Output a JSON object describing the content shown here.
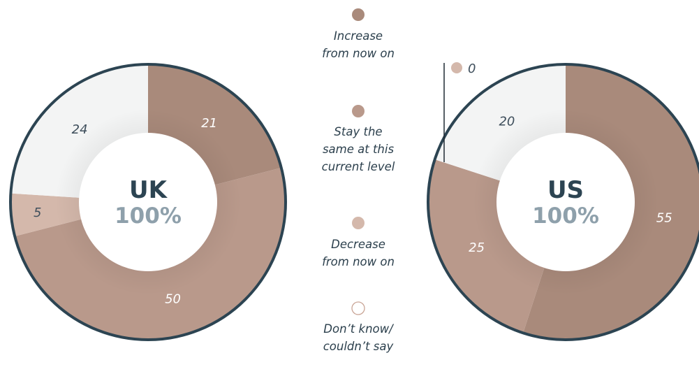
{
  "colors": {
    "increase": "#a98a7b",
    "stay_same": "#b9998b",
    "decrease": "#d4b8ab",
    "dont_know": "#f3f4f4",
    "ring_border": "#2c4452",
    "center_fill": "#ffffff"
  },
  "legend": [
    {
      "key": "increase",
      "lines": [
        "Increase",
        "from now on"
      ]
    },
    {
      "key": "stay_same",
      "lines": [
        "Stay the",
        "same at this",
        "current level"
      ]
    },
    {
      "key": "decrease",
      "lines": [
        "Decrease",
        "from now on"
      ]
    },
    {
      "key": "dont_know",
      "lines": [
        "Don’t know/",
        "couldn’t say"
      ]
    }
  ],
  "chart_data": [
    {
      "type": "pie",
      "subtype": "donut",
      "center_label": "UK",
      "center_total": "100%",
      "categories": [
        "Increase from now on",
        "Stay the same at this current level",
        "Decrease from now on",
        "Don’t know/ couldn’t say"
      ],
      "values": [
        21,
        50,
        5,
        24
      ]
    },
    {
      "type": "pie",
      "subtype": "donut",
      "center_label": "US",
      "center_total": "100%",
      "categories": [
        "Increase from now on",
        "Stay the same at this current level",
        "Decrease from now on",
        "Don’t know/ couldn’t say"
      ],
      "values": [
        55,
        25,
        0,
        20
      ]
    }
  ]
}
